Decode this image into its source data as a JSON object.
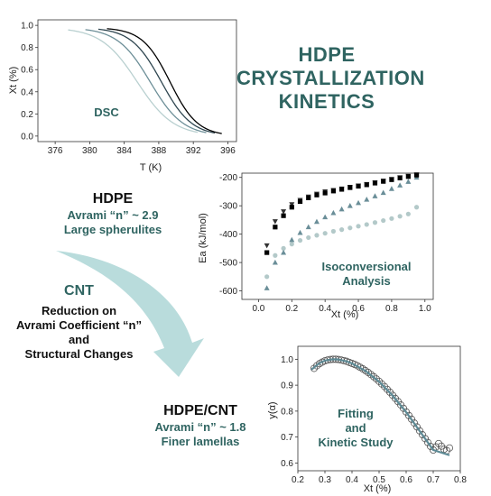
{
  "title": [
    "HDPE",
    "CRYSTALLIZATION",
    "KINETICS"
  ],
  "hdpe": {
    "heading": "HDPE",
    "line1": "Avrami “n” ~ 2.9",
    "line2": "Large spherulites"
  },
  "cnt": {
    "heading": "CNT",
    "line1": "Reduction on",
    "line2": "Avrami Coefficient “n”",
    "line3": "and",
    "line4": "Structural Changes"
  },
  "hdpecnt": {
    "heading": "HDPE/CNT",
    "line1": "Avrami “n” ~ 1.8",
    "line2": "Finer lamellas"
  },
  "colors": {
    "teal": "#2f6461",
    "arrow": "#b9dcdc",
    "black": "#111111"
  },
  "chart_data": [
    {
      "type": "line",
      "annotation": "DSC",
      "xlabel": "T (K)",
      "ylabel": "Xt (%)",
      "xlim": [
        374,
        397
      ],
      "ylim": [
        -0.05,
        1.05
      ],
      "xticks": [
        "376",
        "380",
        "384",
        "388",
        "392",
        "396"
      ],
      "yticks": [
        "0.0",
        "0.2",
        "0.4",
        "0.6",
        "0.8",
        "1.0"
      ],
      "series": [
        {
          "color": "#b9d0d0",
          "T0": 385.5,
          "w": 2.1,
          "xmin": 377.5,
          "xmax": 392.5
        },
        {
          "color": "#6d8f98",
          "T0": 387.0,
          "w": 1.9,
          "xmin": 379.5,
          "xmax": 393.5
        },
        {
          "color": "#2f4650",
          "T0": 388.3,
          "w": 1.75,
          "xmin": 381.0,
          "xmax": 394.5
        },
        {
          "color": "#000000",
          "T0": 389.3,
          "w": 1.6,
          "xmin": 382.0,
          "xmax": 395.3
        }
      ]
    },
    {
      "type": "scatter",
      "annotation": [
        "Isoconversional",
        "Analysis"
      ],
      "xlabel": "Xt (%)",
      "ylabel": "Ea (kJ/mol)",
      "xlim": [
        -0.1,
        1.05
      ],
      "ylim": [
        -630,
        -185
      ],
      "xticks": [
        "0.0",
        "0.2",
        "0.4",
        "0.6",
        "0.8",
        "1.0"
      ],
      "yticks": [
        "-600",
        "-500",
        "-400",
        "-300",
        "-200"
      ],
      "series": [
        {
          "marker": "circle",
          "color": "#b3c9c9",
          "x": [
            0.05,
            0.1,
            0.15,
            0.2,
            0.25,
            0.3,
            0.35,
            0.4,
            0.45,
            0.5,
            0.55,
            0.6,
            0.65,
            0.7,
            0.75,
            0.8,
            0.85,
            0.9,
            0.95
          ],
          "y": [
            -550,
            -475,
            -450,
            -435,
            -422,
            -412,
            -404,
            -397,
            -390,
            -384,
            -378,
            -372,
            -366,
            -359,
            -352,
            -345,
            -337,
            -329,
            -305
          ]
        },
        {
          "marker": "triangle-up",
          "color": "#6a8e98",
          "x": [
            0.05,
            0.1,
            0.15,
            0.2,
            0.25,
            0.3,
            0.35,
            0.4,
            0.45,
            0.5,
            0.55,
            0.6,
            0.65,
            0.7,
            0.75,
            0.8,
            0.85,
            0.9,
            0.95
          ],
          "y": [
            -590,
            -500,
            -465,
            -420,
            -395,
            -375,
            -356,
            -340,
            -325,
            -312,
            -300,
            -290,
            -278,
            -266,
            -254,
            -240,
            -228,
            -215,
            -200
          ]
        },
        {
          "marker": "triangle-down",
          "color": "#333333",
          "x": [
            0.05,
            0.1,
            0.15,
            0.2,
            0.25,
            0.3,
            0.35,
            0.4,
            0.45,
            0.5,
            0.55,
            0.6,
            0.65,
            0.7,
            0.75,
            0.8,
            0.85,
            0.9,
            0.95
          ],
          "y": [
            -440,
            -355,
            -320,
            -295,
            -280,
            -268,
            -258,
            -250,
            -245,
            -240,
            -234,
            -229,
            -224,
            -218,
            -212,
            -206,
            -200,
            -195,
            -190
          ]
        },
        {
          "marker": "square",
          "color": "#000000",
          "x": [
            0.05,
            0.1,
            0.15,
            0.2,
            0.25,
            0.3,
            0.35,
            0.4,
            0.45,
            0.5,
            0.55,
            0.6,
            0.65,
            0.7,
            0.75,
            0.8,
            0.85,
            0.9,
            0.95
          ],
          "y": [
            -465,
            -375,
            -335,
            -305,
            -285,
            -272,
            -262,
            -255,
            -248,
            -242,
            -236,
            -231,
            -226,
            -220,
            -214,
            -208,
            -202,
            -197,
            -192
          ]
        }
      ]
    },
    {
      "type": "scatter",
      "annotation": [
        "Fitting",
        "and",
        "Kinetic Study"
      ],
      "xlabel": "Xt (%)",
      "ylabel": "y(α)",
      "xlim": [
        0.2,
        0.8
      ],
      "ylim": [
        0.57,
        1.05
      ],
      "xticks": [
        "0.2",
        "0.3",
        "0.4",
        "0.5",
        "0.6",
        "0.7",
        "0.8"
      ],
      "yticks": [
        "0.6",
        "0.7",
        "0.8",
        "0.9",
        "1.0"
      ],
      "series": [
        {
          "marker": "open-circle",
          "color": "#555555",
          "x": [
            0.26,
            0.27,
            0.28,
            0.29,
            0.3,
            0.31,
            0.32,
            0.33,
            0.34,
            0.35,
            0.36,
            0.37,
            0.38,
            0.39,
            0.4,
            0.41,
            0.42,
            0.43,
            0.44,
            0.45,
            0.46,
            0.47,
            0.48,
            0.49,
            0.5,
            0.51,
            0.52,
            0.53,
            0.54,
            0.55,
            0.56,
            0.57,
            0.58,
            0.59,
            0.6,
            0.61,
            0.62,
            0.63,
            0.64,
            0.65,
            0.66,
            0.67,
            0.68,
            0.69,
            0.7,
            0.71,
            0.72,
            0.73,
            0.74,
            0.75,
            0.76
          ],
          "y": [
            0.965,
            0.975,
            0.983,
            0.989,
            0.994,
            0.997,
            0.999,
            1.0,
            1.0,
            0.999,
            0.997,
            0.995,
            0.992,
            0.988,
            0.984,
            0.98,
            0.975,
            0.969,
            0.963,
            0.956,
            0.949,
            0.941,
            0.933,
            0.924,
            0.915,
            0.905,
            0.895,
            0.884,
            0.873,
            0.861,
            0.849,
            0.837,
            0.824,
            0.811,
            0.797,
            0.783,
            0.769,
            0.754,
            0.739,
            0.724,
            0.709,
            0.694,
            0.679,
            0.664,
            0.65,
            0.662,
            0.675,
            0.665,
            0.653,
            0.648,
            0.658
          ]
        },
        {
          "marker": "line",
          "color": "#5d8a95",
          "x": [
            0.25,
            0.28,
            0.3,
            0.33,
            0.35,
            0.38,
            0.4,
            0.45,
            0.5,
            0.55,
            0.6,
            0.65,
            0.7,
            0.76
          ],
          "y": [
            0.96,
            0.985,
            0.995,
            1.0,
            0.999,
            0.992,
            0.984,
            0.955,
            0.914,
            0.86,
            0.796,
            0.723,
            0.65,
            0.63
          ]
        }
      ]
    }
  ]
}
